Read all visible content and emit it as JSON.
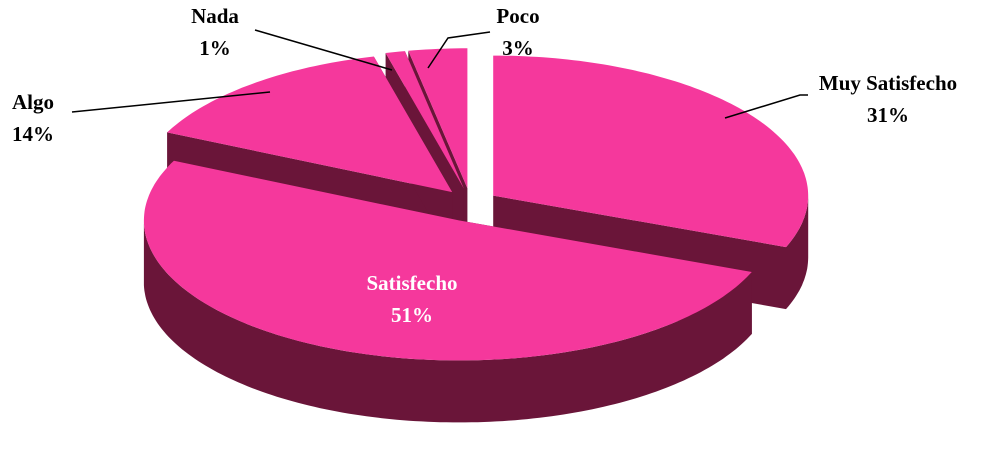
{
  "chart_data": {
    "type": "pie",
    "categories": [
      "Muy Satisfecho",
      "Satisfecho",
      "Algo",
      "Nada",
      "Poco"
    ],
    "values": [
      31,
      51,
      14,
      1,
      3
    ],
    "value_labels": [
      "31%",
      "51%",
      "14%",
      "1%",
      "3%"
    ],
    "color": "#f5389c",
    "side_color": "#6a1539",
    "label_color_inside": "#ffffff",
    "exploded": true
  }
}
